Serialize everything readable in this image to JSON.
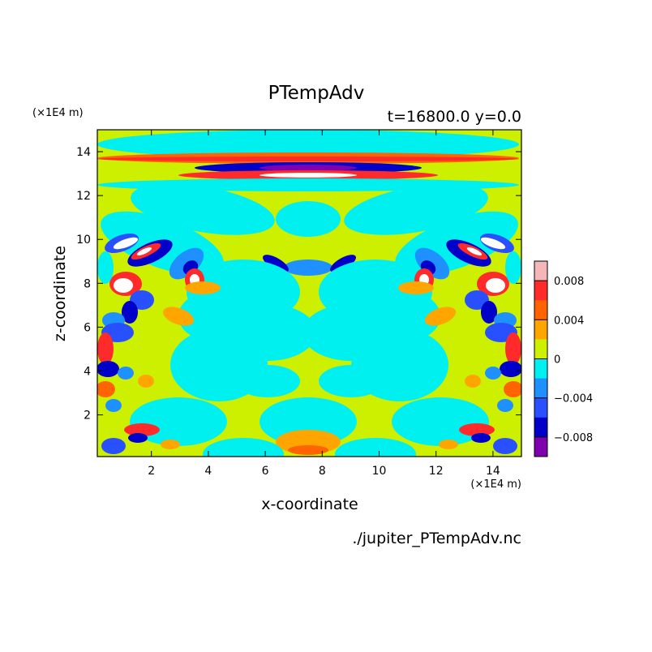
{
  "chart_data": {
    "type": "heatmap",
    "title": "PTempAdv",
    "subtitle": "t=16800.0 y=0.0",
    "xlabel": "x-coordinate",
    "ylabel": "z-coordinate",
    "x_unit": "(×1E4 m)",
    "z_unit": "(×1E4 m)",
    "xlim": [
      0.1,
      15
    ],
    "ylim": [
      0.1,
      15
    ],
    "xticks": [
      2,
      4,
      6,
      8,
      10,
      12,
      14
    ],
    "yticks": [
      2,
      4,
      6,
      8,
      10,
      12,
      14
    ],
    "colorbar": {
      "labels": [
        "0.008",
        "0.004",
        "0",
        "−0.004",
        "−0.008"
      ],
      "levels": [
        {
          "min": 0.008,
          "color": "#f4b6b6"
        },
        {
          "min": 0.006,
          "color": "#ff2a2a"
        },
        {
          "min": 0.004,
          "color": "#ff6400"
        },
        {
          "min": 0.002,
          "color": "#ffa500"
        },
        {
          "min": 0.0,
          "color": "#ccf000"
        },
        {
          "min": -0.002,
          "color": "#00f0f0"
        },
        {
          "min": -0.004,
          "color": "#1e90ff"
        },
        {
          "min": -0.006,
          "color": "#2850ff"
        },
        {
          "min": -0.008,
          "color": "#0000c8"
        },
        {
          "min": -0.01,
          "color": "#8000b0"
        }
      ]
    },
    "grid": false
  },
  "footer": {
    "filename": "./jupiter_PTempAdv.nc"
  }
}
